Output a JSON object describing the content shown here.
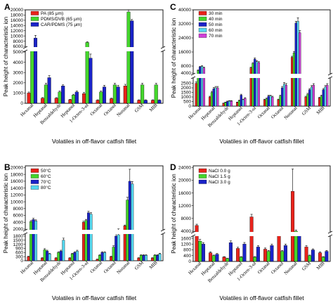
{
  "chart_data": [
    {
      "type": "bar",
      "panel": "A",
      "legend_placement": "top-left",
      "ylabel": "Peak height of characteristic ion",
      "xlabel": "Volatiles in off-flavor catfish fillet",
      "categories": [
        "Hexanal",
        "Heptanal",
        "Benzaldehyde",
        "Heptanol",
        "1-Octen-3-ol",
        "Octanal",
        "Octanol",
        "Nonanal",
        "GSM",
        "MIB"
      ],
      "colors": [
        "#e8231b",
        "#44d62c",
        "#1a23c8"
      ],
      "broken_axis": true,
      "lower_range": [
        0,
        5000
      ],
      "lower_ticks": [
        0,
        1000,
        2000,
        3000,
        4000,
        5000
      ],
      "upper_range": [
        6000,
        20000
      ],
      "upper_ticks": [
        6000,
        8000,
        10000,
        12000,
        14000,
        16000,
        18000,
        20000
      ],
      "series": [
        {
          "name": "PA (85 μm)",
          "values": [
            1000,
            500,
            500,
            350,
            950,
            300,
            450,
            1700,
            300,
            300
          ],
          "errors": [
            100,
            60,
            50,
            40,
            100,
            40,
            50,
            150,
            40,
            40
          ]
        },
        {
          "name": "PDMS/DVB (65 μm)",
          "values": [
            5200,
            1800,
            1100,
            800,
            7500,
            1100,
            1800,
            19200,
            1800,
            1800
          ],
          "errors": [
            200,
            150,
            100,
            80,
            300,
            100,
            150,
            800,
            150,
            150
          ]
        },
        {
          "name": "CAR/PDMS (75 μm)",
          "values": [
            9200,
            2500,
            1700,
            1100,
            4400,
            1600,
            1600,
            15800,
            300,
            300
          ],
          "errors": [
            1000,
            200,
            100,
            100,
            400,
            150,
            150,
            500,
            40,
            40
          ]
        }
      ]
    },
    {
      "type": "bar",
      "panel": "B",
      "legend_placement": "top-left",
      "ylabel": "Peak height of characteristic ion",
      "xlabel": "Volatiles in off-flavor catfish fillet",
      "categories": [
        "Hexanal",
        "Heptanal",
        "Benzaldehyde",
        "Heptanol",
        "1-Octen-3-ol",
        "Octanal",
        "Octanol",
        "Nonanal",
        "GSM",
        "MIB"
      ],
      "colors": [
        "#e8231b",
        "#44d62c",
        "#1a23c8",
        "#55d8f0"
      ],
      "broken_axis": true,
      "lower_range": [
        0,
        1900
      ],
      "lower_ticks": [
        0,
        300,
        600,
        900,
        1200,
        1500,
        1800
      ],
      "upper_range": [
        2000,
        20500
      ],
      "upper_ticks": [
        2000,
        4000,
        6000,
        8000,
        10000,
        12000,
        14000,
        16000,
        18000,
        20000
      ],
      "series": [
        {
          "name": "50°C",
          "values": [
            300,
            200,
            200,
            200,
            4000,
            100,
            300,
            3000,
            200,
            200
          ],
          "errors": [
            30,
            20,
            20,
            20,
            300,
            20,
            30,
            200,
            20,
            20
          ]
        },
        {
          "name": "60°C",
          "values": [
            4200,
            800,
            600,
            500,
            4500,
            400,
            1000,
            10500,
            400,
            400
          ],
          "errors": [
            300,
            80,
            60,
            50,
            350,
            40,
            100,
            800,
            40,
            40
          ]
        },
        {
          "name": "70°C",
          "values": [
            4800,
            700,
            700,
            600,
            6800,
            600,
            1800,
            16000,
            400,
            400
          ],
          "errors": [
            350,
            70,
            70,
            60,
            400,
            60,
            150,
            3500,
            40,
            40
          ]
        },
        {
          "name": "80°C",
          "values": [
            4400,
            500,
            1500,
            700,
            6400,
            600,
            1900,
            15200,
            400,
            500
          ],
          "errors": [
            300,
            50,
            150,
            70,
            400,
            60,
            150,
            700,
            40,
            50
          ]
        }
      ]
    },
    {
      "type": "bar",
      "panel": "C",
      "legend_placement": "top-left",
      "ylabel": "Peak height of characteristic ion",
      "xlabel": "Volatiles in off-flavor catfish fillet",
      "categories": [
        "Hexanal",
        "Heptanal",
        "Benzaldehyde",
        "Heptanol",
        "1-Octen-3-ol",
        "Octanal",
        "Octanol",
        "Nonanal",
        "GSM",
        "MIB"
      ],
      "colors": [
        "#e8231b",
        "#44d62c",
        "#1a23c8",
        "#55d8f0",
        "#d040d8"
      ],
      "broken_axis": true,
      "lower_range": [
        0,
        3000
      ],
      "lower_ticks": [
        0,
        500,
        1000,
        1500,
        2000,
        2500
      ],
      "upper_range": [
        4000,
        40000
      ],
      "upper_ticks": [
        4000,
        8000,
        16000,
        24000,
        32000,
        40000
      ],
      "series": [
        {
          "name": "30 min",
          "values": [
            2500,
            1000,
            300,
            400,
            7000,
            700,
            700,
            13000,
            1000,
            900
          ],
          "errors": [
            150,
            80,
            30,
            40,
            400,
            60,
            60,
            600,
            80,
            80
          ]
        },
        {
          "name": "40 min",
          "values": [
            5500,
            1500,
            400,
            600,
            9500,
            800,
            1100,
            15500,
            1300,
            1100
          ],
          "errors": [
            300,
            120,
            40,
            60,
            500,
            70,
            90,
            800,
            100,
            90
          ]
        },
        {
          "name": "50 min",
          "values": [
            7500,
            1900,
            500,
            1200,
            12000,
            1100,
            2000,
            32500,
            1800,
            1800
          ],
          "errors": [
            400,
            150,
            50,
            100,
            600,
            90,
            150,
            1000,
            120,
            120
          ]
        },
        {
          "name": "60 min",
          "values": [
            7800,
            2000,
            550,
            700,
            10500,
            1100,
            2400,
            33500,
            2100,
            2100
          ],
          "errors": [
            400,
            150,
            50,
            60,
            500,
            90,
            180,
            2000,
            150,
            150
          ]
        },
        {
          "name": "70 min",
          "values": [
            7000,
            2000,
            550,
            850,
            10000,
            1000,
            2300,
            27000,
            2300,
            2300
          ],
          "errors": [
            350,
            150,
            50,
            70,
            500,
            80,
            170,
            1200,
            160,
            160
          ]
        }
      ]
    },
    {
      "type": "bar",
      "panel": "D",
      "legend_placement": "top-left",
      "ylabel": "Peak height of characteristic ion",
      "xlabel": "Volatiles in off-flavor catfish fillet",
      "categories": [
        "Hexanal",
        "Heptanal",
        "Benzaldehyde",
        "Heptanol",
        "1-Octen-3-ol",
        "Octanal",
        "Octanol",
        "Nonanal",
        "GSM",
        "MIB"
      ],
      "colors": [
        "#e8231b",
        "#44d62c",
        "#1a23c8"
      ],
      "broken_axis": true,
      "lower_range": [
        0,
        1700
      ],
      "lower_ticks": [
        0,
        400,
        800,
        1200,
        1600
      ],
      "upper_range": [
        4000,
        24500
      ],
      "upper_ticks": [
        4000,
        8000,
        12000,
        16000,
        20000,
        24000
      ],
      "series": [
        {
          "name": "NaCl 0.0 g",
          "values": [
            5800,
            600,
            300,
            900,
            8500,
            850,
            2800,
            16500,
            1000,
            600
          ],
          "errors": [
            400,
            60,
            30,
            80,
            800,
            80,
            300,
            7000,
            90,
            60
          ]
        },
        {
          "name": "NaCl 1.5 g",
          "values": [
            1400,
            400,
            200,
            300,
            300,
            700,
            700,
            4000,
            400,
            300
          ],
          "errors": [
            120,
            40,
            20,
            30,
            30,
            60,
            60,
            400,
            40,
            30
          ]
        },
        {
          "name": "NaCl 3.0 g",
          "values": [
            1200,
            500,
            1300,
            1200,
            1000,
            1100,
            1100,
            2600,
            800,
            700
          ],
          "errors": [
            100,
            50,
            120,
            110,
            90,
            100,
            100,
            300,
            70,
            60
          ]
        }
      ]
    }
  ]
}
